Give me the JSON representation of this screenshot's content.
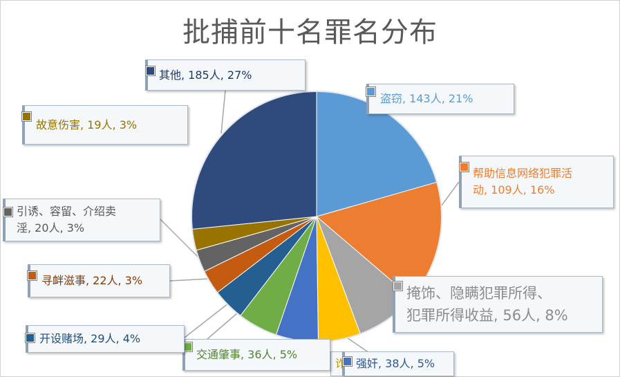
{
  "chart_data": {
    "type": "pie",
    "title": "批捕前十名罪名分布",
    "start_angle_deg": 0,
    "direction": "clockwise",
    "slices": [
      {
        "name": "盗窃",
        "value": 143,
        "percent": "21%",
        "label": "盗窃, 143人, 21%",
        "color": "#5b9bd5",
        "text_color": "#5b9bd5"
      },
      {
        "name": "帮助信息网络犯罪活动",
        "value": 109,
        "percent": "16%",
        "label": "帮助信息网络犯罪活\n动, 109人, 16%",
        "color": "#ed7d31",
        "text_color": "#ed7d31"
      },
      {
        "name": "掩饰、隐瞒犯罪所得、犯罪所得收益",
        "value": 56,
        "percent": "8%",
        "label": "掩饰、隐瞒犯罪所得、\n犯罪所得收益, 56人, 8%",
        "color": "#a5a5a5",
        "text_color": "#8c8c8c"
      },
      {
        "name": "诈骗",
        "value": 38,
        "percent": "5%",
        "label": "诈",
        "color": "#ffc000",
        "text_color": "#bf9000"
      },
      {
        "name": "强奸",
        "value": 38,
        "percent": "5%",
        "label": "强奸, 38人, 5%",
        "color": "#4472c4",
        "text_color": "#2f5597"
      },
      {
        "name": "交通肇事",
        "value": 36,
        "percent": "5%",
        "label": "交通肇事, 36人, 5%",
        "color": "#70ad47",
        "text_color": "#548235"
      },
      {
        "name": "开设赌场",
        "value": 29,
        "percent": "4%",
        "label": "开设赌场, 29人, 4%",
        "color": "#255e91",
        "text_color": "#1f4e79"
      },
      {
        "name": "寻衅滋事",
        "value": 22,
        "percent": "3%",
        "label": "寻衅滋事, 22人, 3%",
        "color": "#c55a11",
        "text_color": "#843c0c"
      },
      {
        "name": "引诱、容留、介绍卖淫",
        "value": 20,
        "percent": "3%",
        "label": "引诱、容留、介绍卖\n淫, 20人, 3%",
        "color": "#636363",
        "text_color": "#595959"
      },
      {
        "name": "故意伤害",
        "value": 19,
        "percent": "3%",
        "label": "故意伤害, 19人, 3%",
        "color": "#997300",
        "text_color": "#997300"
      },
      {
        "name": "其他",
        "value": 185,
        "percent": "27%",
        "label": "其他, 185人, 27%",
        "color": "#2f4a7c",
        "text_color": "#1f3864"
      }
    ],
    "legend": "none",
    "data_labels": "callouts"
  }
}
